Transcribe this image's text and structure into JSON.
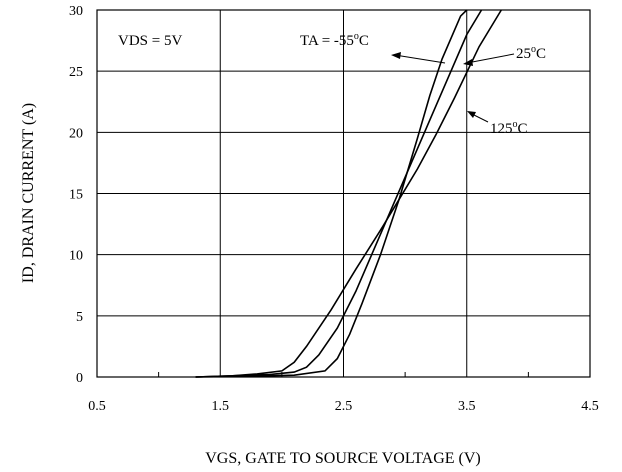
{
  "chart_data": {
    "type": "line",
    "xlabel": "VGS, GATE TO SOURCE VOLTAGE (V)",
    "ylabel": "ID, DRAIN CURRENT (A)",
    "xlim": [
      0.5,
      4.5
    ],
    "ylim": [
      0,
      30
    ],
    "xticks": [
      "0.5",
      "1.5",
      "2.5",
      "3.5",
      "4.5"
    ],
    "yticks": [
      "0",
      "5",
      "10",
      "15",
      "20",
      "25",
      "30"
    ],
    "grid": true,
    "annotations": {
      "condition": "VDS = 5V",
      "ta_prefix": "TA = -55",
      "label_25": "25",
      "label_125": "125",
      "degree_symbol": "o",
      "unit": "C"
    },
    "series": [
      {
        "name": "-55°C",
        "x": [
          1.3,
          1.6,
          1.9,
          2.1,
          2.35,
          2.45,
          2.55,
          2.65,
          2.8,
          2.95,
          3.1,
          3.2,
          3.3,
          3.45,
          3.5
        ],
        "y": [
          0,
          0.05,
          0.1,
          0.15,
          0.5,
          1.5,
          3.5,
          6.0,
          10.0,
          14.5,
          19.5,
          23.0,
          26.0,
          29.5,
          30.0
        ]
      },
      {
        "name": "25°C",
        "x": [
          1.3,
          1.6,
          1.9,
          2.1,
          2.2,
          2.3,
          2.45,
          2.6,
          2.75,
          2.9,
          3.05,
          3.2,
          3.35,
          3.5,
          3.62
        ],
        "y": [
          0,
          0.1,
          0.2,
          0.4,
          0.8,
          1.8,
          4.0,
          7.0,
          10.5,
          14.0,
          17.5,
          21.0,
          24.5,
          28.0,
          30.0
        ]
      },
      {
        "name": "125°C",
        "x": [
          1.3,
          1.6,
          1.8,
          2.0,
          2.1,
          2.2,
          2.4,
          2.6,
          2.8,
          2.95,
          3.1,
          3.25,
          3.4,
          3.6,
          3.78
        ],
        "y": [
          0,
          0.1,
          0.25,
          0.5,
          1.2,
          2.5,
          5.5,
          8.8,
          12.0,
          14.5,
          17.0,
          19.8,
          22.8,
          27.0,
          30.0
        ]
      }
    ]
  }
}
